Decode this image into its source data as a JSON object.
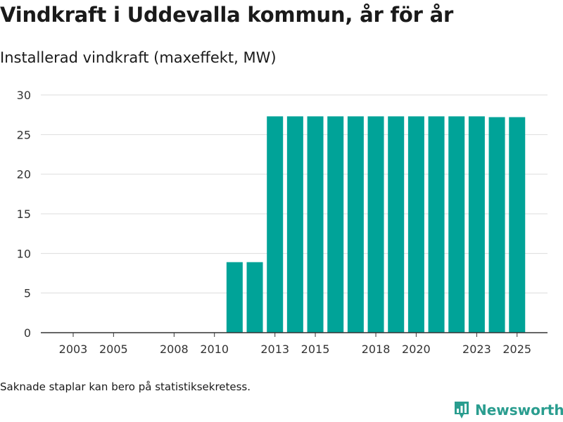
{
  "header": {
    "title": "Vindkraft i Uddevalla kommun, år för år",
    "subtitle": "Installerad vindkraft (maxeffekt, MW)"
  },
  "footer": {
    "note": "Saknade staplar kan bero på statistiksekretess.",
    "brand": "Newsworthy"
  },
  "colors": {
    "bar": "#00a398",
    "grid": "#dddddd",
    "axis": "#333333",
    "brand": "#2a9d8f"
  },
  "chart_data": {
    "type": "bar",
    "title": "Vindkraft i Uddevalla kommun, år för år",
    "ylabel": "Installerad vindkraft (maxeffekt, MW)",
    "xlabel": "",
    "ylim": [
      0,
      30
    ],
    "yticks": [
      0,
      5,
      10,
      15,
      20,
      25,
      30
    ],
    "xticks": [
      "2003",
      "2005",
      "2008",
      "2010",
      "2013",
      "2015",
      "2018",
      "2020",
      "2023",
      "2025"
    ],
    "grid": true,
    "categories": [
      "2003",
      "2004",
      "2005",
      "2006",
      "2007",
      "2008",
      "2009",
      "2010",
      "2011",
      "2012",
      "2013",
      "2014",
      "2015",
      "2016",
      "2017",
      "2018",
      "2019",
      "2020",
      "2021",
      "2022",
      "2023",
      "2024",
      "2025"
    ],
    "values": [
      0,
      0,
      0,
      0,
      0,
      0,
      0,
      0,
      8.9,
      8.9,
      27.3,
      27.3,
      27.3,
      27.3,
      27.3,
      27.3,
      27.3,
      27.3,
      27.3,
      27.3,
      27.3,
      27.2,
      27.2
    ]
  }
}
